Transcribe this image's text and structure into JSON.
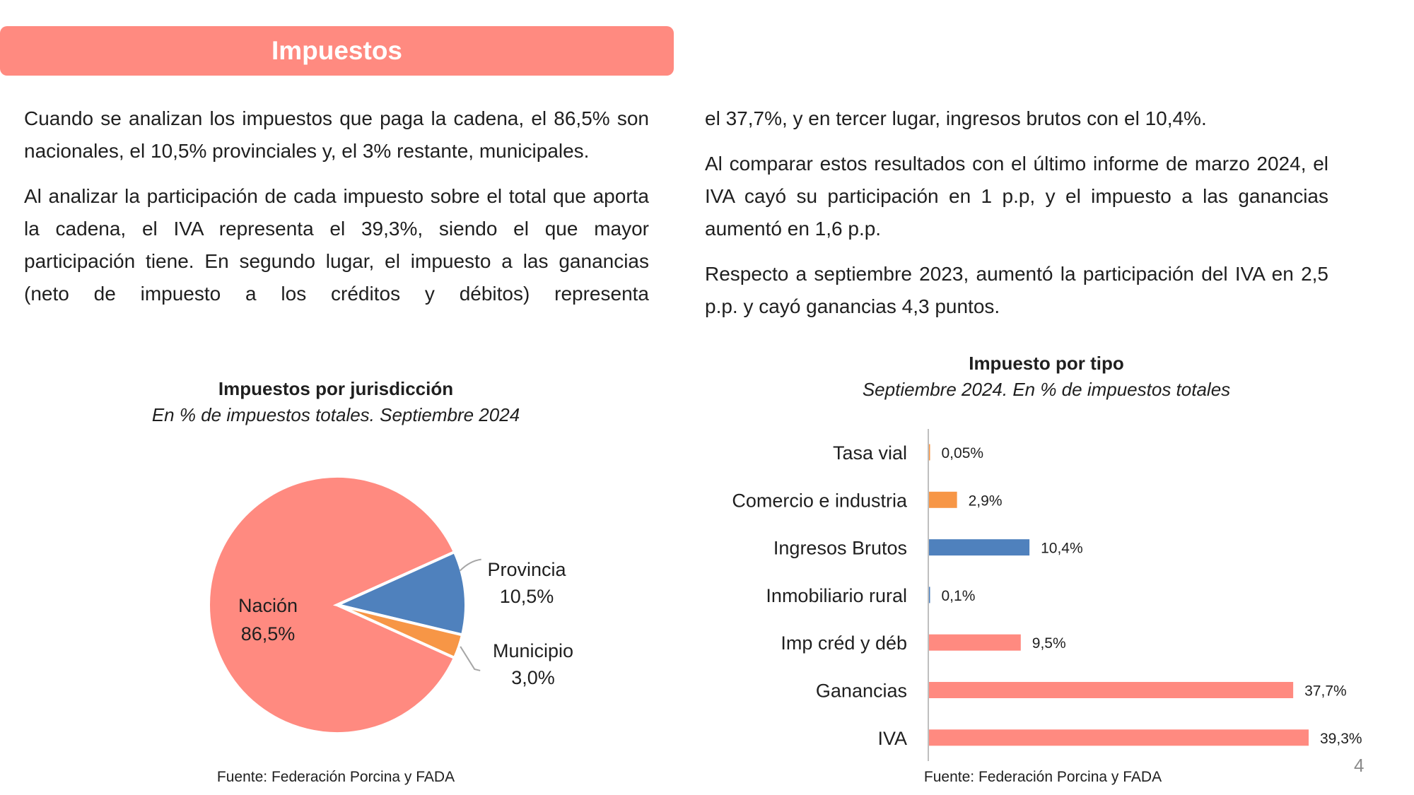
{
  "header": {
    "title": "Impuestos"
  },
  "text": {
    "left": [
      "Cuando se analizan los impuestos que paga la cadena, el 86,5% son nacionales, el 10,5% provinciales y, el 3% restante, municipales.",
      "Al analizar la participación de cada impuesto sobre el total que aporta la cadena, el IVA representa el 39,3%, siendo el que mayor participación tiene. En segundo lugar, el impuesto a las ganancias (neto de impuesto a los créditos y débitos) representa"
    ],
    "right": [
      "el 37,7%, y en tercer lugar, ingresos brutos con el 10,4%.",
      "Al comparar estos resultados con el último informe de marzo 2024, el IVA cayó su participación en 1 p.p, y el impuesto a las ganancias aumentó en 1,6 p.p.",
      "Respecto a septiembre 2023, aumentó la participación del IVA en 2,5 p.p. y cayó ganancias 4,3 puntos."
    ]
  },
  "chart_data": [
    {
      "type": "pie",
      "title": "Impuestos por jurisdicción",
      "subtitle": "En % de impuestos totales. Septiembre 2024",
      "slices": [
        {
          "name": "Nación",
          "value": 86.5,
          "label": "86,5%",
          "color": "#ff8a80"
        },
        {
          "name": "Provincia",
          "value": 10.5,
          "label": "10,5%",
          "color": "#4f81bd"
        },
        {
          "name": "Municipio",
          "value": 3.0,
          "label": "3,0%",
          "color": "#f79646"
        }
      ],
      "source": "Fuente: Federación Porcina y FADA"
    },
    {
      "type": "bar",
      "orientation": "horizontal",
      "title": "Impuesto por tipo",
      "subtitle": "Septiembre 2024. En % de impuestos totales",
      "categories": [
        "Tasa vial",
        "Comercio e industria",
        "Ingresos Brutos",
        "Inmobiliario rural",
        "Imp créd y déb",
        "Ganancias",
        "IVA"
      ],
      "values": [
        0.05,
        2.9,
        10.4,
        0.1,
        9.5,
        37.7,
        39.3
      ],
      "labels": [
        "0,05%",
        "2,9%",
        "10,4%",
        "0,1%",
        "9,5%",
        "37,7%",
        "39,3%"
      ],
      "colors": [
        "#f79646",
        "#f79646",
        "#4f81bd",
        "#4f81bd",
        "#ff8a80",
        "#ff8a80",
        "#ff8a80"
      ],
      "xlim": [
        0,
        40
      ],
      "source": "Fuente: Federación Porcina y FADA"
    }
  ],
  "page_number": "4"
}
